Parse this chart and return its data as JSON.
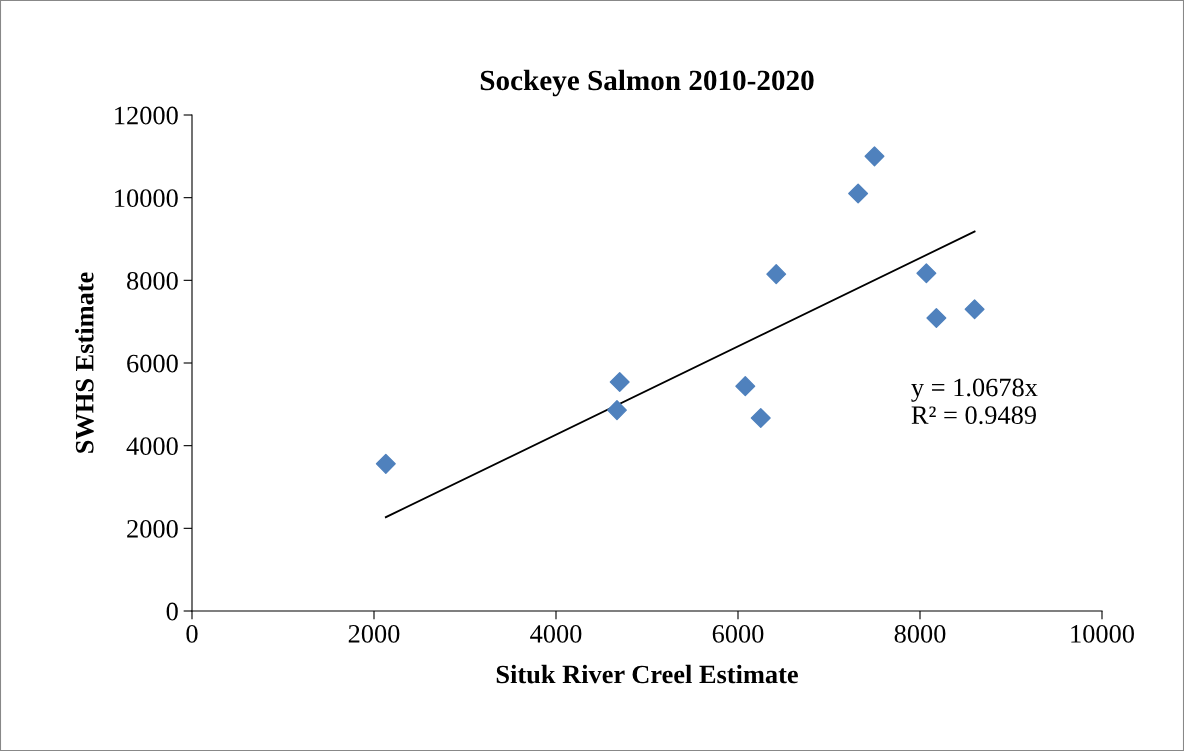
{
  "chart_data": {
    "type": "scatter",
    "title": "Sockeye Salmon 2010-2020",
    "xlabel": "Situk River Creel Estimate",
    "ylabel": "SWHS Estimate",
    "xlim": [
      0,
      10000
    ],
    "xticks": [
      0,
      2000,
      4000,
      6000,
      8000,
      10000
    ],
    "ylim": [
      0,
      12000
    ],
    "yticks": [
      0,
      2000,
      4000,
      6000,
      8000,
      10000,
      12000
    ],
    "grid": false,
    "legend": false,
    "series": [
      {
        "marker": "diamond",
        "color": "#4f81bd",
        "x": [
          2130,
          4670,
          4700,
          6080,
          6250,
          6420,
          7320,
          7500,
          8070,
          8180,
          8600
        ],
        "values": [
          3560,
          4860,
          5540,
          5440,
          4670,
          8150,
          10100,
          11000,
          8170,
          7090,
          7300
        ]
      },
      {
        "type": "line",
        "marker": "none",
        "color": "#000000",
        "x": [
          2130,
          8600
        ],
        "values": [
          2270,
          9180
        ]
      }
    ],
    "annotations": [
      "y = 1.0678x\nR² = 0.9489"
    ]
  }
}
